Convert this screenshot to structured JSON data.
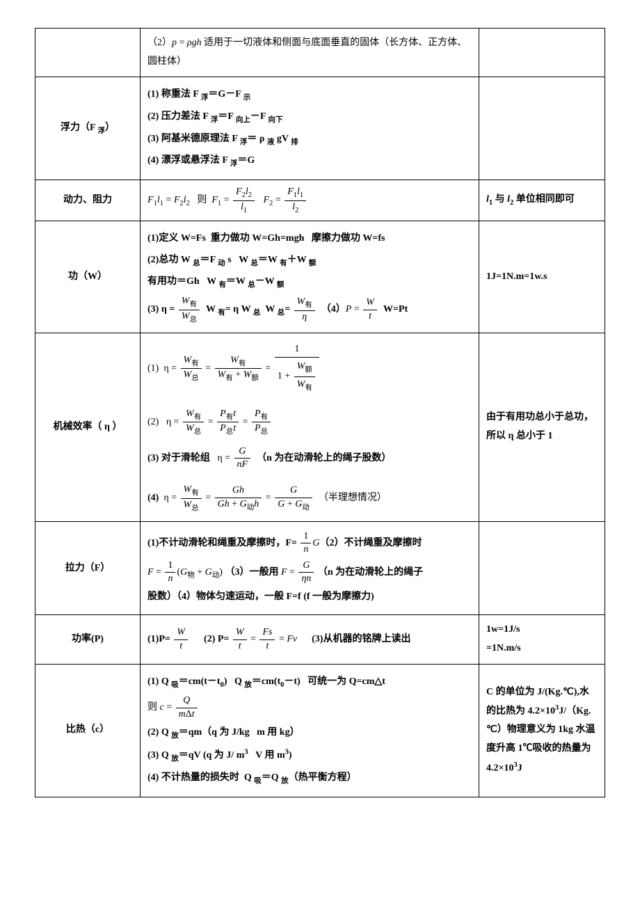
{
  "rows": [
    {
      "name": "",
      "formula_html": "（2）<span class='it'>p</span> = <span class='it'>ρgh</span> 适用于一切液体和侧面与底面垂直的固体（长方体、正方体、圆柱体）",
      "note": ""
    },
    {
      "name": "浮力（F <sub>浮</sub>）",
      "formula_html": "<div class='row-line'><span class='b'>(1) 称重法 F <sub>浮</sub>＝G－F <sub>示</sub></span></div><div class='row-line'><span class='b'>(2) 压力差法 F <sub>浮</sub>＝F <sub>向上</sub>－F <sub>向下</sub></span></div><div class='row-line'><span class='b'>(3) 阿基米德原理法 F <sub>浮</sub>＝ ρ <sub>液</sub> gV <sub>排</sub></span></div><div class='row-line'><span class='b'>(4) 漂浮或悬浮法 F <sub>浮</sub>＝G</span></div>",
      "note": ""
    },
    {
      "name": "动力、阻力",
      "formula_html": "<span class='it'>F</span><sub>1</sub><span class='it'>l</span><sub>1</sub> = <span class='it'>F</span><sub>2</sub><span class='it'>l</span><sub>2</sub>&nbsp;&nbsp;&nbsp;则&nbsp;&nbsp;<span class='it'>F</span><sub>1</sub> = <span class='frac'><span class='num'><span class='it'>F</span><sub>2</sub><span class='it'>l</span><sub>2</sub></span><span class='den'><span class='it'>l</span><sub>1</sub></span></span>&nbsp;&nbsp;&nbsp;<span class='it'>F</span><sub>2</sub> = <span class='frac'><span class='num'><span class='it'>F</span><sub>1</sub><span class='it'>l</span><sub>1</sub></span><span class='den'><span class='it'>l</span><sub>2</sub></span></span>",
      "note": "<span class='it'>l</span><sub>1</sub> 与 <span class='it'>l</span><sub>2</sub> 单位相同即可"
    },
    {
      "name": "功（W）",
      "formula_html": "<div class='row-line'><span class='b'>(1)定义 W=Fs&nbsp;&nbsp;重力做功 W=Gh=mgh&nbsp;&nbsp;&nbsp;摩擦力做功 W=fs</span></div><div class='row-line'><span class='b'>(2)总功 W <sub>总</sub>＝F <sub>动</sub> s&nbsp;&nbsp;&nbsp;W <sub>总</sub>＝W <sub>有</sub>＋W <sub>额</sub></span></div><div class='row-line'><span class='b'>有用功＝Gh&nbsp;&nbsp;&nbsp;W <sub>有</sub>＝W <sub>总</sub>－W <sub>额</sub></span></div><div class='row-line'><span class='b'>(3) η = </span><span class='frac'><span class='num'><span class='it'>W</span><sub>有</sub></span><span class='den'><span class='it'>W</span><sub>总</sub></span></span>&nbsp;&nbsp;<span class='b'>W <sub>有</sub>= η W <sub>总</sub>&nbsp;&nbsp;W <sub>总</sub>= </span><span class='frac'><span class='num'><span class='it'>W</span><sub>有</sub></span><span class='den'><span class='it'>η</span></span></span>&nbsp;&nbsp;<span class='b'>（4）</span><span class='it'>P</span> = <span class='frac'><span class='num'><span class='it'>W</span></span><span class='den'><span class='it'>t</span></span></span>&nbsp;&nbsp;<span class='b'>W=Pt</span></div>",
      "note": "1J=1N.m=1w.s"
    },
    {
      "name": "机械效率（ η ）",
      "formula_html": "<div class='row-line'>(1)&nbsp;&nbsp;η = <span class='frac'><span class='num'><span class='it'>W</span><sub>有</sub></span><span class='den'><span class='it'>W</span><sub>总</sub></span></span> = <span class='frac'><span class='num'><span class='it'>W</span><sub>有</sub></span><span class='den'><span class='it'>W</span><sub>有</sub> + <span class='it'>W</span><sub>额</sub></span></span> = <span class='frac big-frac'><span class='num'>1</span><span class='den'>1 + <span class='frac'><span class='num'><span class='it'>W</span><sub>额</sub></span><span class='den'><span class='it'>W</span><sub>有</sub></span></span></span></span></div><div class='row-line' style='margin-top:18px;'>(2)&nbsp;&nbsp;&nbsp;η = <span class='frac'><span class='num'><span class='it'>W</span><sub>有</sub></span><span class='den'><span class='it'>W</span><sub>总</sub></span></span> = <span class='frac'><span class='num'><span class='it'>P</span><sub>有</sub><span class='it'>t</span></span><span class='den'><span class='it'>P</span><sub>总</sub><span class='it'>t</span></span></span> = <span class='frac'><span class='num'><span class='it'>P</span><sub>有</sub></span><span class='den'><span class='it'>P</span><sub>总</sub></span></span></div><div class='row-line' style='margin-top:12px;'><span class='b'>(3) 对于滑轮组&nbsp;&nbsp;&nbsp;</span>η = <span class='frac'><span class='num'><span class='it'>G</span></span><span class='den'><span class='it'>nF</span></span></span>&nbsp;&nbsp;<span class='b'>（n 为在动滑轮上的绳子股数）</span></div><div class='row-line' style='margin-top:18px;'><span class='b'>(4)&nbsp;&nbsp;</span>η = <span class='frac'><span class='num'><span class='it'>W</span><sub>有</sub></span><span class='den'><span class='it'>W</span><sub>总</sub></span></span> = <span class='frac'><span class='num'><span class='it'>Gh</span></span><span class='den'><span class='it'>Gh</span> + <span class='it'>G</span><sub>动</sub><span class='it'>h</span></span></span> = <span class='frac'><span class='num'><span class='it'>G</span></span><span class='den'><span class='it'>G</span> + <span class='it'>G</span><sub>动</sub></span></span>&nbsp;&nbsp;（半理想情况）</div>",
      "note": "由于有用功总小于总功，所以 η 总小于 1"
    },
    {
      "name": "拉力（F）",
      "formula_html": "<div class='row-line'><span class='b'>(1)不计动滑轮和绳重及摩擦时，F= </span><span class='frac'><span class='num'>1</span><span class='den'><span class='it'>n</span></span></span><span class='it'>G</span><span class='b'>（2）不计绳重及摩擦时</span></div><div class='row-line'><span class='it'>F</span> = <span class='frac'><span class='num'>1</span><span class='den'><span class='it'>n</span></span></span>(<span class='it'>G</span><sub>物</sub> + <span class='it'>G</span><sub>动</sub>)&nbsp;<span class='b'>（3）一般用 </span><span class='it'>F</span> = <span class='frac'><span class='num'><span class='it'>G</span></span><span class='den'><span class='it'>ηn</span></span></span>&nbsp;<span class='b'>（n 为在动滑轮上的绳子</span></div><div class='row-line'><span class='b'>股数）（4）物体匀速运动，一般 F=f (f&nbsp;一般为摩擦力)</span></div>",
      "note": ""
    },
    {
      "name": "功率(P)",
      "formula_html": "<span class='b'>(1)P= </span><span class='frac'><span class='num'><span class='it'>W</span></span><span class='den'><span class='it'>t</span></span></span>&nbsp;&nbsp;&nbsp;&nbsp;&nbsp;&nbsp;<span class='b'>(2) P= </span><span class='frac'><span class='num'><span class='it'>W</span></span><span class='den'><span class='it'>t</span></span></span> = <span class='frac'><span class='num'><span class='it'>Fs</span></span><span class='den'><span class='it'>t</span></span></span> = <span class='it'>Fv</span>&nbsp;&nbsp;&nbsp;&nbsp;&nbsp;&nbsp;<span class='b'>(3)从机器的铭牌上读出</span>",
      "note": "1w=1J/s<br>=1N.m/s"
    },
    {
      "name": "比热（c）",
      "formula_html": "<div class='row-line'><span class='b'>(1)&nbsp;Q <sub>吸</sub>＝cm(t－t<sub>0</sub>)&nbsp;&nbsp;&nbsp;Q <sub>放</sub>＝cm(t<sub>0</sub>－t)&nbsp;&nbsp;&nbsp;可统一为 Q=cm△t</span></div><div class='row-line'>则 <span class='it'>c</span> = <span class='frac'><span class='num'><span class='it'>Q</span></span><span class='den'><span class='it'>m</span>Δ<span class='it'>t</span></span></span></div><div class='row-line'><span class='b'>(2)&nbsp;Q <sub>放</sub>＝qm（q 为 J/kg&nbsp;&nbsp;&nbsp;m 用 kg）</span></div><div class='row-line'><span class='b'>(3)&nbsp;Q <sub>放</sub>＝qV (q 为 J/ m<sup>3</sup>&nbsp;&nbsp;&nbsp;V 用 m<sup>3</sup>)</span></div><div class='row-line'><span class='b'>(4)&nbsp;不计热量的损失时&nbsp;&nbsp;Q <sub>吸</sub>＝Q <sub>放</sub>（热平衡方程）</span></div>",
      "note": "C 的单位为 J/(Kg.℃),水的比热为 4.2×10<sup>3</sup>J/（Kg.℃）物理意义为 1kg 水温度升高 1℃吸收的热量为 4.2×10<sup>3</sup>J"
    }
  ]
}
